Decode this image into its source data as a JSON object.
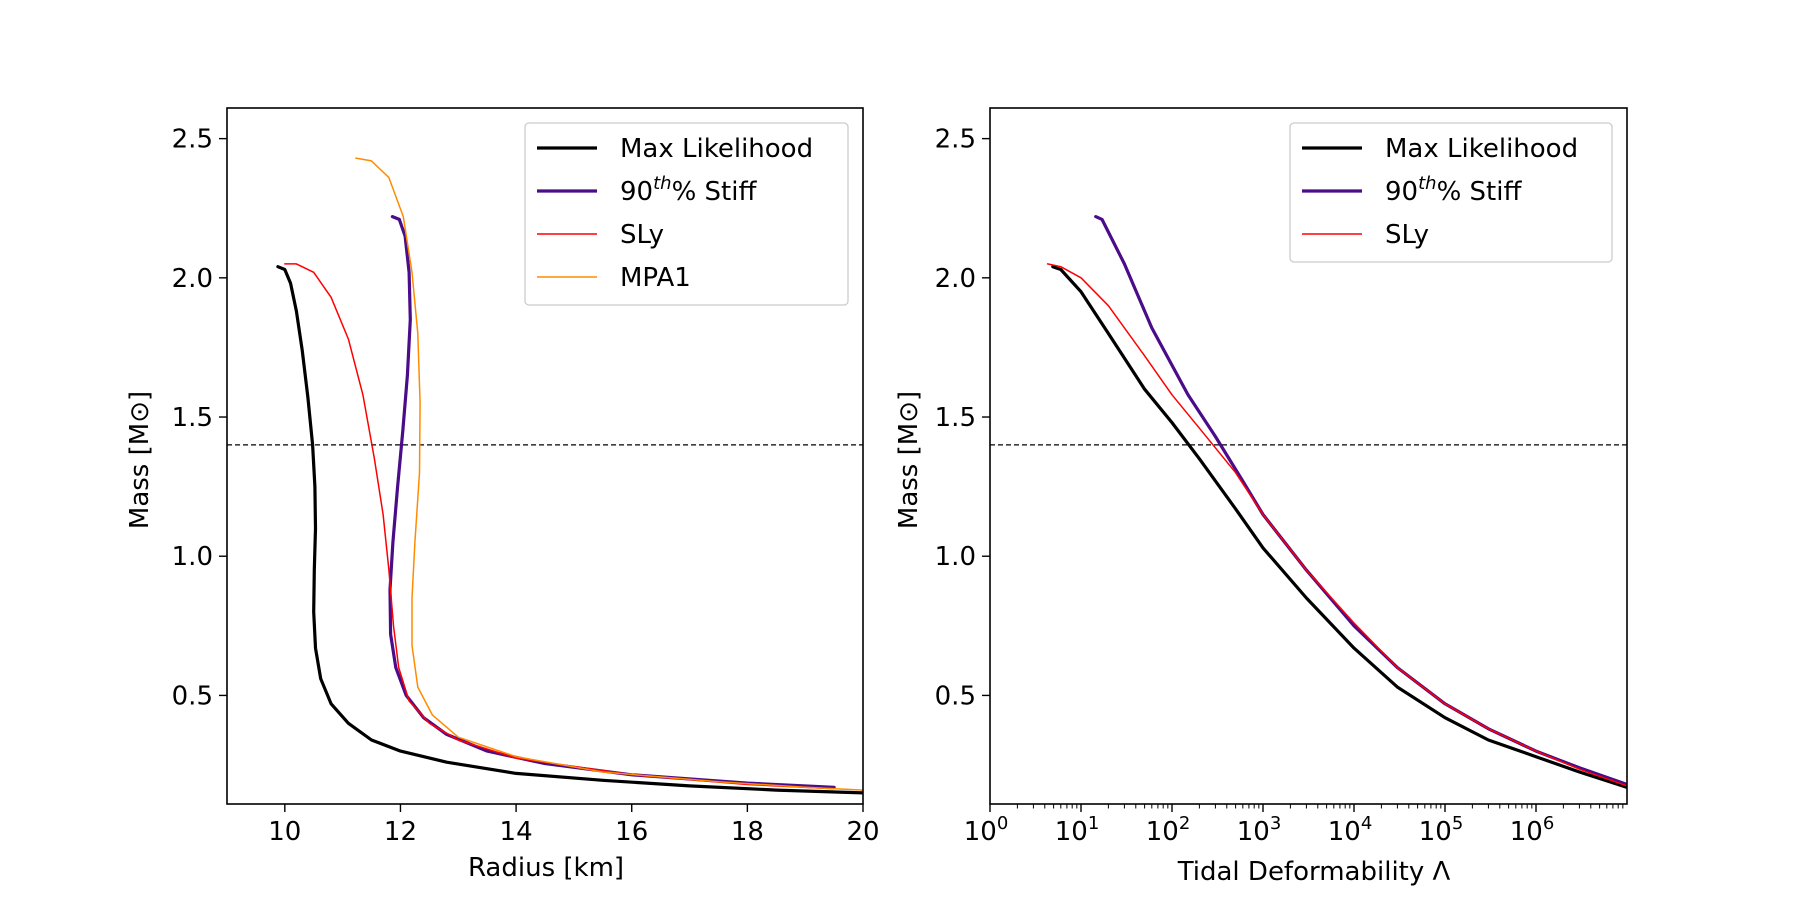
{
  "chart_data": [
    {
      "type": "line",
      "xlabel": "Radius [km]",
      "ylabel": "Mass [M⊙]",
      "xlim": [
        9.0,
        20.0
      ],
      "ylim": [
        0.11,
        2.61
      ],
      "x_scale": "linear",
      "xticks": [
        10,
        12,
        14,
        16,
        18,
        20
      ],
      "xtick_labels": [
        "10",
        "12",
        "14",
        "16",
        "18",
        "20"
      ],
      "yticks": [
        0.5,
        1.0,
        1.5,
        2.0,
        2.5
      ],
      "ytick_labels": [
        "0.5",
        "1.0",
        "1.5",
        "2.0",
        "2.5"
      ],
      "grid": false,
      "legend_position": "upper right",
      "hline": {
        "y": 1.4,
        "style": "dashed",
        "color": "#000000"
      },
      "series": [
        {
          "name": "Max Likelihood",
          "color": "#000000",
          "width": 3.2,
          "points": [
            [
              9.88,
              2.04
            ],
            [
              10.0,
              2.03
            ],
            [
              10.1,
              1.98
            ],
            [
              10.2,
              1.88
            ],
            [
              10.3,
              1.74
            ],
            [
              10.4,
              1.57
            ],
            [
              10.48,
              1.4
            ],
            [
              10.52,
              1.25
            ],
            [
              10.53,
              1.1
            ],
            [
              10.51,
              0.95
            ],
            [
              10.5,
              0.8
            ],
            [
              10.53,
              0.67
            ],
            [
              10.62,
              0.56
            ],
            [
              10.8,
              0.47
            ],
            [
              11.1,
              0.4
            ],
            [
              11.5,
              0.34
            ],
            [
              12.0,
              0.3
            ],
            [
              12.8,
              0.26
            ],
            [
              14.0,
              0.22
            ],
            [
              15.5,
              0.195
            ],
            [
              17.0,
              0.175
            ],
            [
              18.5,
              0.16
            ],
            [
              20.0,
              0.15
            ]
          ]
        },
        {
          "name": "90th% Stiff",
          "color": "#4b0c8a",
          "width": 3.2,
          "points": [
            [
              11.86,
              2.22
            ],
            [
              11.98,
              2.21
            ],
            [
              12.08,
              2.15
            ],
            [
              12.15,
              2.02
            ],
            [
              12.17,
              1.85
            ],
            [
              12.12,
              1.65
            ],
            [
              12.04,
              1.45
            ],
            [
              11.95,
              1.25
            ],
            [
              11.87,
              1.05
            ],
            [
              11.82,
              0.88
            ],
            [
              11.83,
              0.72
            ],
            [
              11.92,
              0.6
            ],
            [
              12.1,
              0.5
            ],
            [
              12.4,
              0.42
            ],
            [
              12.8,
              0.36
            ],
            [
              13.5,
              0.3
            ],
            [
              14.5,
              0.255
            ],
            [
              16.0,
              0.215
            ],
            [
              18.0,
              0.185
            ],
            [
              19.5,
              0.17
            ]
          ]
        },
        {
          "name": "SLy",
          "color": "#ff0000",
          "width": 1.5,
          "points": [
            [
              10.0,
              2.05
            ],
            [
              10.2,
              2.05
            ],
            [
              10.5,
              2.02
            ],
            [
              10.8,
              1.93
            ],
            [
              11.1,
              1.78
            ],
            [
              11.35,
              1.58
            ],
            [
              11.55,
              1.35
            ],
            [
              11.7,
              1.15
            ],
            [
              11.8,
              0.95
            ],
            [
              11.88,
              0.75
            ],
            [
              11.97,
              0.6
            ],
            [
              12.15,
              0.48
            ],
            [
              12.5,
              0.4
            ],
            [
              13.0,
              0.34
            ],
            [
              14.0,
              0.275
            ],
            [
              16.0,
              0.215
            ],
            [
              18.0,
              0.18
            ],
            [
              19.5,
              0.165
            ]
          ]
        },
        {
          "name": "MPA1",
          "color": "#ff8c00",
          "width": 1.5,
          "points": [
            [
              11.23,
              2.43
            ],
            [
              11.5,
              2.42
            ],
            [
              11.8,
              2.36
            ],
            [
              12.05,
              2.22
            ],
            [
              12.2,
              2.02
            ],
            [
              12.3,
              1.8
            ],
            [
              12.34,
              1.55
            ],
            [
              12.33,
              1.3
            ],
            [
              12.25,
              1.05
            ],
            [
              12.2,
              0.85
            ],
            [
              12.2,
              0.68
            ],
            [
              12.3,
              0.53
            ],
            [
              12.55,
              0.43
            ],
            [
              13.0,
              0.35
            ],
            [
              14.0,
              0.28
            ],
            [
              15.5,
              0.225
            ],
            [
              17.5,
              0.19
            ],
            [
              19.0,
              0.17
            ],
            [
              20.0,
              0.16
            ]
          ]
        }
      ]
    },
    {
      "type": "line",
      "xlabel": "Tidal Deformability Λ",
      "ylabel": "Mass [M⊙]",
      "xlim": [
        1,
        10000000
      ],
      "ylim": [
        0.11,
        2.61
      ],
      "x_scale": "log",
      "xticks": [
        1,
        10,
        100,
        1000,
        10000,
        100000,
        1000000
      ],
      "xtick_labels": [
        {
          "base": "10",
          "exp": "0"
        },
        {
          "base": "10",
          "exp": "1"
        },
        {
          "base": "10",
          "exp": "2"
        },
        {
          "base": "10",
          "exp": "3"
        },
        {
          "base": "10",
          "exp": "4"
        },
        {
          "base": "10",
          "exp": "5"
        },
        {
          "base": "10",
          "exp": "6"
        }
      ],
      "yticks": [
        0.5,
        1.0,
        1.5,
        2.0,
        2.5
      ],
      "ytick_labels": [
        "0.5",
        "1.0",
        "1.5",
        "2.0",
        "2.5"
      ],
      "grid": false,
      "legend_position": "upper right",
      "hline": {
        "y": 1.4,
        "style": "dashed",
        "color": "#000000"
      },
      "series": [
        {
          "name": "Max Likelihood",
          "color": "#000000",
          "width": 3.2,
          "points": [
            [
              4.9,
              2.04
            ],
            [
              6,
              2.03
            ],
            [
              10,
              1.95
            ],
            [
              20,
              1.8
            ],
            [
              50,
              1.6
            ],
            [
              100,
              1.48
            ],
            [
              200,
              1.35
            ],
            [
              500,
              1.17
            ],
            [
              1000,
              1.03
            ],
            [
              3000,
              0.85
            ],
            [
              10000,
              0.67
            ],
            [
              30000,
              0.53
            ],
            [
              100000,
              0.42
            ],
            [
              300000,
              0.34
            ],
            [
              1000000,
              0.28
            ],
            [
              3000000,
              0.225
            ],
            [
              10000000,
              0.17
            ]
          ]
        },
        {
          "name": "90th% Stiff",
          "color": "#4b0c8a",
          "width": 3.2,
          "points": [
            [
              14.5,
              2.22
            ],
            [
              17,
              2.21
            ],
            [
              30,
              2.05
            ],
            [
              60,
              1.82
            ],
            [
              150,
              1.58
            ],
            [
              300,
              1.43
            ],
            [
              600,
              1.27
            ],
            [
              1000,
              1.15
            ],
            [
              3000,
              0.95
            ],
            [
              10000,
              0.75
            ],
            [
              30000,
              0.6
            ],
            [
              100000,
              0.47
            ],
            [
              300000,
              0.38
            ],
            [
              1000000,
              0.3
            ],
            [
              3000000,
              0.24
            ],
            [
              10000000,
              0.18
            ]
          ]
        },
        {
          "name": "SLy",
          "color": "#ff0000",
          "width": 1.5,
          "points": [
            [
              4.3,
              2.05
            ],
            [
              6,
              2.04
            ],
            [
              10,
              2.0
            ],
            [
              20,
              1.9
            ],
            [
              50,
              1.72
            ],
            [
              100,
              1.58
            ],
            [
              200,
              1.46
            ],
            [
              500,
              1.3
            ],
            [
              1000,
              1.15
            ],
            [
              3000,
              0.95
            ],
            [
              10000,
              0.76
            ],
            [
              30000,
              0.6
            ],
            [
              100000,
              0.47
            ],
            [
              300000,
              0.38
            ],
            [
              1000000,
              0.3
            ],
            [
              3000000,
              0.235
            ],
            [
              10000000,
              0.175
            ]
          ]
        }
      ]
    }
  ]
}
